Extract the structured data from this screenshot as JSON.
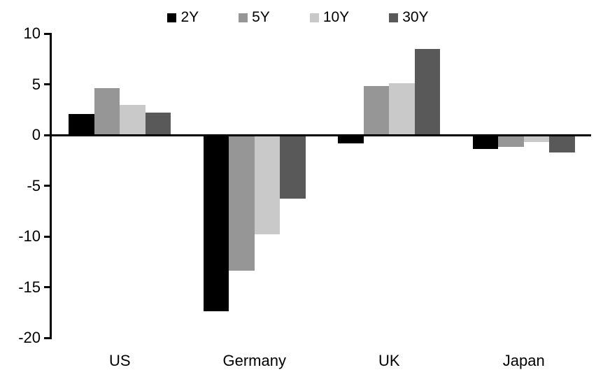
{
  "chart_data": {
    "type": "bar",
    "title": "",
    "categories": [
      "US",
      "Germany",
      "UK",
      "Japan"
    ],
    "series": [
      {
        "name": "2Y",
        "color": "#000000",
        "values": [
          2.1,
          -17.4,
          -0.8,
          -1.4
        ]
      },
      {
        "name": "5Y",
        "color": "#969696",
        "values": [
          4.6,
          -13.4,
          4.8,
          -1.2
        ]
      },
      {
        "name": "10Y",
        "color": "#c9c9c9",
        "values": [
          3.0,
          -9.8,
          5.1,
          -0.7
        ]
      },
      {
        "name": "30Y",
        "color": "#595959",
        "values": [
          2.2,
          -6.3,
          8.5,
          -1.7
        ]
      }
    ],
    "xlabel": "",
    "ylabel": "",
    "ylim": [
      -20,
      10
    ],
    "yticks": [
      10,
      5,
      0,
      -5,
      -10,
      -15,
      -20
    ],
    "legend_position": "top",
    "grid": false,
    "axis_color": "#000000",
    "background": "#ffffff"
  }
}
